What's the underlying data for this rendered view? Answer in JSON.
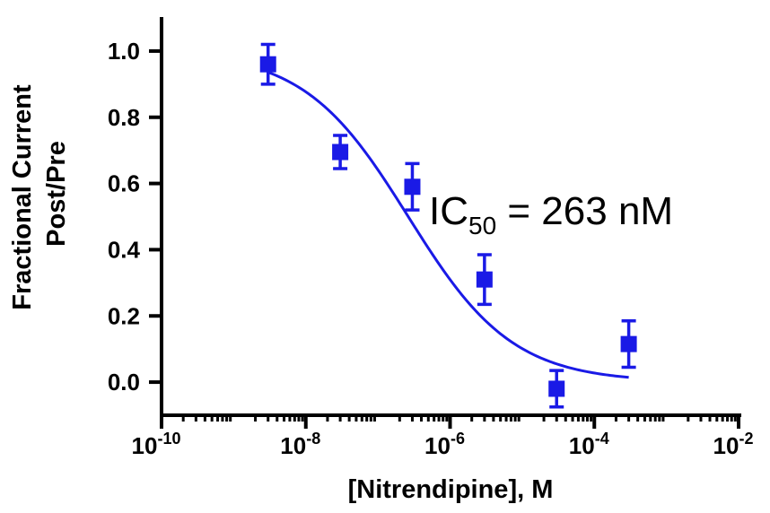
{
  "chart_data": {
    "type": "scatter",
    "title": "",
    "xlabel": "[Nitrendipine], M",
    "ylabel_lines": [
      "Fractional Current",
      "Post/Pre"
    ],
    "x_scale": "log",
    "x_range": [
      1e-10,
      0.01
    ],
    "y_range": [
      -0.1,
      1.1
    ],
    "x_ticks": [
      {
        "value": 1e-10,
        "base": "10",
        "exp": "-10"
      },
      {
        "value": 1e-08,
        "base": "10",
        "exp": "-8"
      },
      {
        "value": 1e-06,
        "base": "10",
        "exp": "-6"
      },
      {
        "value": 0.0001,
        "base": "10",
        "exp": "-4"
      },
      {
        "value": 0.01,
        "base": "10",
        "exp": "-2"
      }
    ],
    "y_ticks": [
      {
        "value": 0.0,
        "label": "0.0"
      },
      {
        "value": 0.2,
        "label": "0.2"
      },
      {
        "value": 0.4,
        "label": "0.4"
      },
      {
        "value": 0.6,
        "label": "0.6"
      },
      {
        "value": 0.8,
        "label": "0.8"
      },
      {
        "value": 1.0,
        "label": "1.0"
      }
    ],
    "series": [
      {
        "color": "#1a1ae6",
        "marker": "square",
        "points": [
          {
            "x": 3e-09,
            "y": 0.96,
            "err": 0.06
          },
          {
            "x": 3e-08,
            "y": 0.695,
            "err": 0.05
          },
          {
            "x": 3e-07,
            "y": 0.59,
            "err": 0.07
          },
          {
            "x": 3e-06,
            "y": 0.31,
            "err": 0.075
          },
          {
            "x": 3e-05,
            "y": -0.02,
            "err": 0.055
          },
          {
            "x": 0.0003,
            "y": 0.115,
            "err": 0.07
          }
        ]
      }
    ],
    "fit": {
      "color": "#1a1ae6",
      "model": "sigmoid",
      "top": 1.0,
      "bottom": 0.0,
      "ic50": 2.63e-07,
      "hill": 0.6,
      "x_from": 3e-09,
      "x_to": 0.0003
    },
    "annotation": {
      "prefix": "IC",
      "sub": "50",
      "suffix": " = 263 nM"
    },
    "grid": false,
    "legend": "none"
  }
}
